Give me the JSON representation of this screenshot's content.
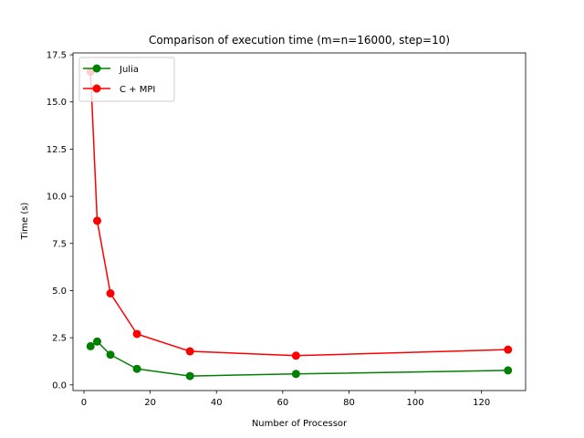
{
  "chart_data": {
    "type": "line",
    "title": "Comparison of execution time (m=n=16000, step=10)",
    "xlabel": "Number of Processor",
    "ylabel": "Time (s)",
    "xlim": [
      -3.3,
      133.3
    ],
    "ylim": [
      -0.3,
      17.6
    ],
    "xticks": [
      0,
      20,
      40,
      60,
      80,
      100,
      120
    ],
    "xtick_labels": [
      "0",
      "20",
      "40",
      "60",
      "80",
      "100",
      "120"
    ],
    "yticks": [
      0.0,
      2.5,
      5.0,
      7.5,
      10.0,
      12.5,
      15.0,
      17.5
    ],
    "ytick_labels": [
      "0.0",
      "2.5",
      "5.0",
      "7.5",
      "10.0",
      "12.5",
      "15.0",
      "17.5"
    ],
    "grid": false,
    "legend_position": "upper-left",
    "series": [
      {
        "name": "Julia",
        "color": "#008000",
        "x": [
          2,
          4,
          8,
          16,
          32,
          64,
          128
        ],
        "y": [
          2.05,
          2.3,
          1.6,
          0.85,
          0.47,
          0.58,
          0.77
        ]
      },
      {
        "name": "C + MPI",
        "color": "#ff0000",
        "x": [
          2,
          4,
          8,
          16,
          32,
          64,
          128
        ],
        "y": [
          16.6,
          8.7,
          4.85,
          2.7,
          1.78,
          1.55,
          1.87
        ]
      }
    ]
  }
}
